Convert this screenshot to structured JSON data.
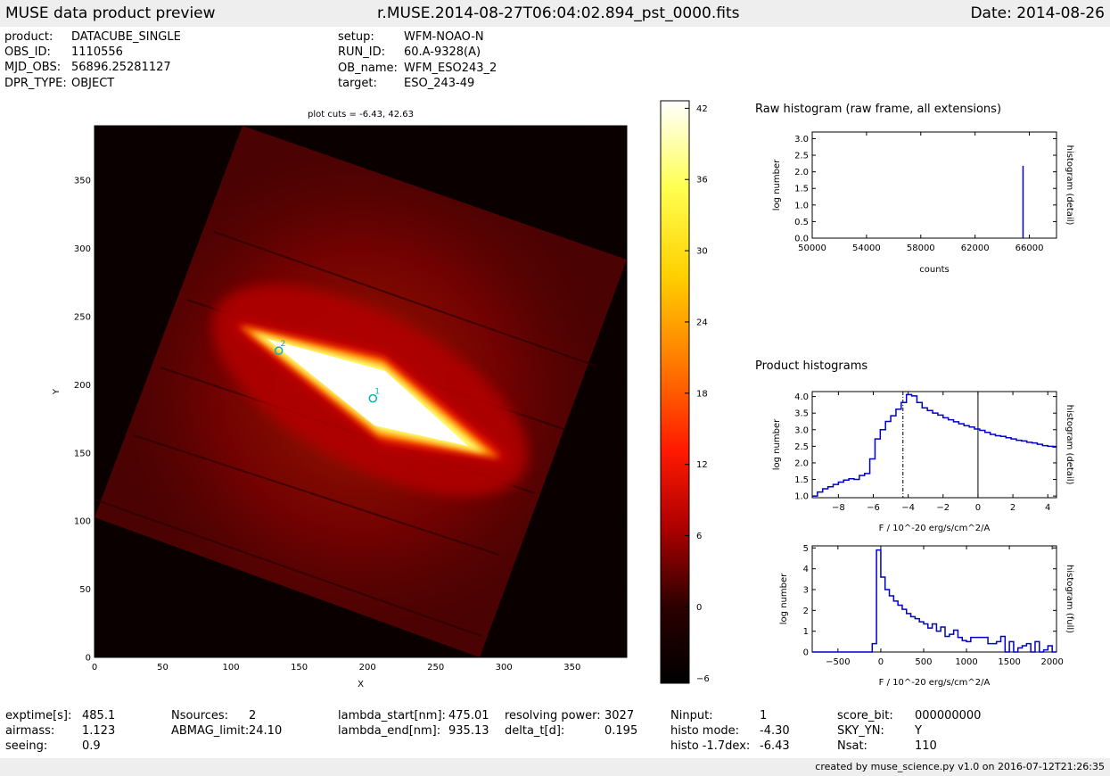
{
  "header": {
    "left_title": "MUSE data product preview",
    "file_name": "r.MUSE.2014-08-27T06:04:02.894_pst_0000.fits",
    "date_text": "Date: 2014-08-26"
  },
  "info_top": {
    "col1": [
      {
        "key": "product:",
        "value": "DATACUBE_SINGLE"
      },
      {
        "key": "OBS_ID:",
        "value": "1110556"
      },
      {
        "key": "MJD_OBS:",
        "value": "56896.25281127"
      },
      {
        "key": "DPR_TYPE:",
        "value": "OBJECT"
      }
    ],
    "col2": [
      {
        "key": "setup:",
        "value": "WFM-NOAO-N"
      },
      {
        "key": "RUN_ID:",
        "value": "60.A-9328(A)"
      },
      {
        "key": "OB_name:",
        "value": "WFM_ESO243_2"
      },
      {
        "key": "target:",
        "value": "ESO_243-49"
      }
    ]
  },
  "info_bottom": {
    "cols": [
      [
        {
          "key": "exptime[s]:",
          "value": "485.1"
        },
        {
          "key": "airmass:",
          "value": "1.123"
        },
        {
          "key": "seeing:",
          "value": "0.9"
        }
      ],
      [
        {
          "key": "Nsources:",
          "value": "2"
        },
        {
          "key": "ABMAG_limit:",
          "value": "24.10"
        }
      ],
      [
        {
          "key": "lambda_start[nm]:",
          "value": "475.01"
        },
        {
          "key": "lambda_end[nm]:",
          "value": "935.13"
        }
      ],
      [
        {
          "key": "resolving power:",
          "value": "3027"
        },
        {
          "key": "delta_t[d]:",
          "value": "0.195"
        }
      ],
      [
        {
          "key": "Ninput:",
          "value": "1"
        },
        {
          "key": "histo mode:",
          "value": "-4.30"
        },
        {
          "key": "histo -1.7dex:",
          "value": "-6.43"
        }
      ],
      [
        {
          "key": "score_bit:",
          "value": "000000000"
        },
        {
          "key": "SKY_YN:",
          "value": "Y"
        },
        {
          "key": "Nsat:",
          "value": "110"
        }
      ]
    ]
  },
  "footer": {
    "credit": "created by muse_science.py v1.0 on 2016-07-12T21:26:35"
  },
  "colors": {
    "line": "#0000cc",
    "marker": "#00b3b3",
    "bar_bg": "#eeeeee"
  },
  "chart_data": [
    {
      "type": "heatmap",
      "title": "plot cuts = -6.43, 42.63",
      "xlabel": "X",
      "ylabel": "Y",
      "xlim": [
        0,
        390
      ],
      "ylim": [
        0,
        390
      ],
      "xticks": [
        0,
        50,
        100,
        150,
        200,
        250,
        300,
        350
      ],
      "yticks": [
        0,
        50,
        100,
        150,
        200,
        250,
        300,
        350
      ],
      "colormap": "hot",
      "sources": [
        {
          "label": "1",
          "x": 204,
          "y": 190
        },
        {
          "label": "2",
          "x": 135,
          "y": 225
        }
      ],
      "colorbar": {
        "min": -6.43,
        "max": 42.63,
        "ticks": [
          42,
          36,
          30,
          24,
          18,
          12,
          6,
          0,
          -6
        ]
      }
    },
    {
      "type": "line",
      "section_title": "Raw histogram (raw frame, all extensions)",
      "xlabel": "counts",
      "ylabel": "log number",
      "right_label": "histogram (detail)",
      "xlim": [
        50000,
        68000
      ],
      "ylim": [
        0,
        3.2
      ],
      "xticks": [
        50000,
        54000,
        58000,
        62000,
        66000
      ],
      "yticks": [
        0.0,
        0.5,
        1.0,
        1.5,
        2.0,
        2.5,
        3.0
      ],
      "spike": {
        "x": 65535,
        "y": 2.18
      }
    },
    {
      "type": "line",
      "section_title": "Product histograms",
      "xlabel": "F / 10^-20 erg/s/cm^2/A",
      "ylabel": "log number",
      "right_label": "histogram (detail)",
      "xlim": [
        -9.5,
        4.5
      ],
      "ylim": [
        0.95,
        4.15
      ],
      "xticks": [
        -8,
        -6,
        -4,
        -2,
        0,
        2,
        4
      ],
      "yticks": [
        1.0,
        1.5,
        2.0,
        2.5,
        3.0,
        3.5,
        4.0
      ],
      "vlines": [
        {
          "x": -4.3,
          "style": "dashdot"
        },
        {
          "x": 0,
          "style": "solid"
        }
      ],
      "series": [
        {
          "x": [
            -9.5,
            -9.2,
            -8.9,
            -8.6,
            -8.3,
            -8.0,
            -7.7,
            -7.4,
            -7.1,
            -6.8,
            -6.5,
            -6.2,
            -5.9,
            -5.6,
            -5.3,
            -5.0,
            -4.7,
            -4.4,
            -4.1,
            -3.8,
            -3.5,
            -3.2,
            -2.9,
            -2.6,
            -2.3,
            -2.0,
            -1.7,
            -1.4,
            -1.1,
            -0.8,
            -0.5,
            -0.2,
            0.1,
            0.4,
            0.7,
            1.0,
            1.3,
            1.6,
            1.9,
            2.2,
            2.5,
            2.8,
            3.1,
            3.4,
            3.7,
            4.0,
            4.3
          ],
          "values": [
            1.0,
            1.12,
            1.22,
            1.28,
            1.35,
            1.42,
            1.48,
            1.52,
            1.5,
            1.62,
            1.68,
            2.12,
            2.72,
            3.0,
            3.25,
            3.42,
            3.62,
            3.82,
            4.06,
            4.02,
            3.82,
            3.66,
            3.58,
            3.5,
            3.44,
            3.36,
            3.3,
            3.24,
            3.18,
            3.12,
            3.08,
            3.02,
            2.98,
            2.92,
            2.86,
            2.82,
            2.8,
            2.76,
            2.72,
            2.68,
            2.66,
            2.62,
            2.6,
            2.56,
            2.52,
            2.5,
            2.48
          ]
        }
      ]
    },
    {
      "type": "line",
      "xlabel": "F / 10^-20 erg/s/cm^2/A",
      "ylabel": "log number",
      "right_label": "histogram (full)",
      "xlim": [
        -800,
        2050
      ],
      "ylim": [
        0,
        5.1
      ],
      "xticks": [
        -500,
        0,
        500,
        1000,
        1500,
        2000
      ],
      "yticks": [
        0,
        1,
        2,
        3,
        4,
        5
      ],
      "series": [
        {
          "x": [
            -800,
            -100,
            -50,
            0,
            50,
            100,
            150,
            200,
            250,
            300,
            350,
            400,
            450,
            500,
            550,
            600,
            650,
            700,
            750,
            800,
            850,
            900,
            950,
            1000,
            1050,
            1100,
            1150,
            1200,
            1250,
            1300,
            1350,
            1400,
            1450,
            1500,
            1550,
            1600,
            1650,
            1700,
            1750,
            1800,
            1850,
            1900,
            1950,
            2000
          ],
          "values": [
            0,
            0.4,
            4.9,
            3.6,
            3.0,
            2.7,
            2.45,
            2.25,
            2.05,
            1.85,
            1.7,
            1.6,
            1.45,
            1.35,
            1.15,
            1.35,
            1.0,
            1.2,
            0.75,
            0.85,
            1.05,
            0.7,
            0.55,
            0.5,
            0.7,
            0.7,
            0.7,
            0.7,
            0.4,
            0.4,
            0.5,
            0.75,
            0,
            0.5,
            0,
            0.2,
            0.3,
            0.4,
            0,
            0.5,
            0,
            0.1,
            0.3,
            0
          ]
        }
      ]
    }
  ]
}
